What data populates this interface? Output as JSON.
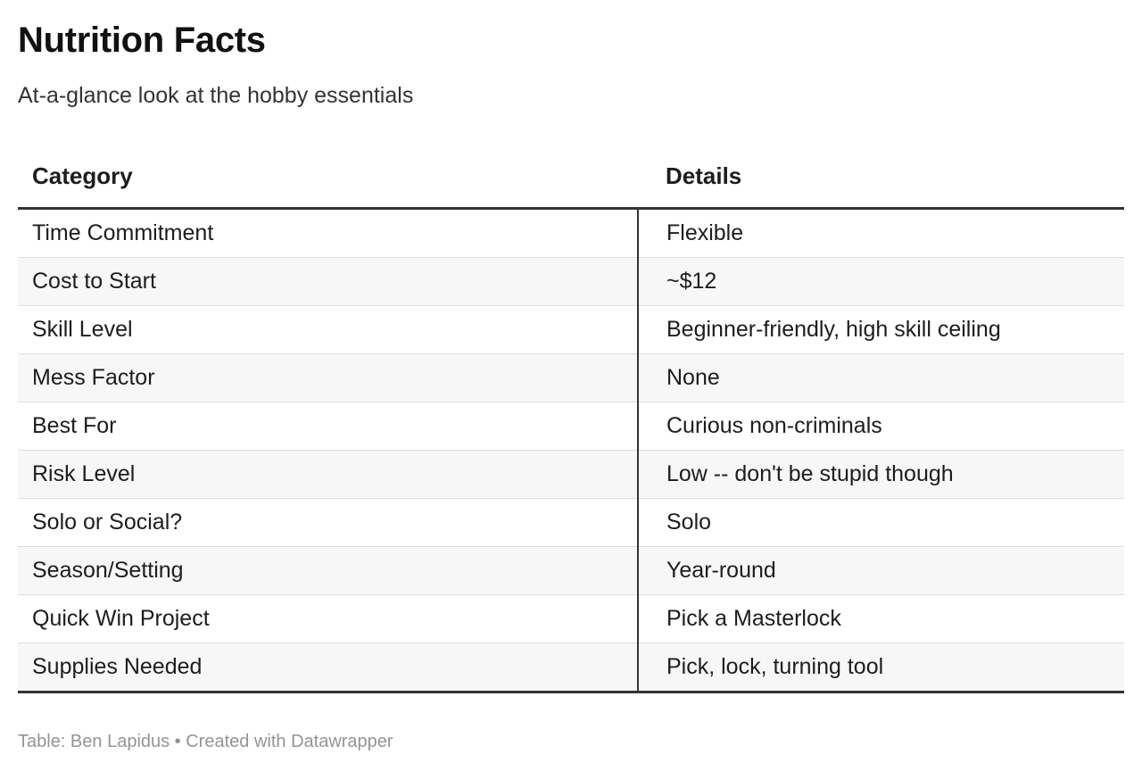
{
  "title": "Nutrition Facts",
  "subtitle": "At-a-glance look at the hobby essentials",
  "table": {
    "headers": [
      "Category",
      "Details"
    ],
    "rows": [
      [
        "Time Commitment",
        "Flexible"
      ],
      [
        "Cost to Start",
        "~$12"
      ],
      [
        "Skill Level",
        "Beginner-friendly, high skill ceiling"
      ],
      [
        "Mess Factor",
        "None"
      ],
      [
        "Best For",
        "Curious non-criminals"
      ],
      [
        "Risk Level",
        "Low -- don't be stupid though"
      ],
      [
        "Solo or Social?",
        "Solo"
      ],
      [
        "Season/Setting",
        "Year-round"
      ],
      [
        "Quick Win Project",
        "Pick a Masterlock"
      ],
      [
        "Supplies Needed",
        "Pick, lock, turning tool"
      ]
    ]
  },
  "footer": "Table: Ben Lapidus • Created with Datawrapper",
  "colors": {
    "text": "#1d1d1d",
    "stripe": "#f7f7f7",
    "rule": "#333333",
    "divider": "#dddddd",
    "footer": "#949494"
  }
}
